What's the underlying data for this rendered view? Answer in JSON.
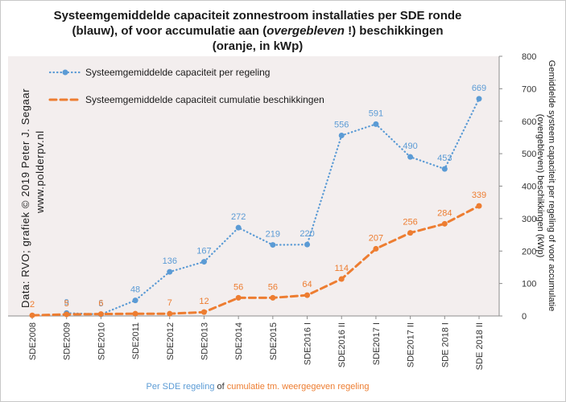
{
  "title": {
    "line1": "Systeemgemiddelde capaciteit zonnestroom installaties per SDE ronde",
    "line2_pre": "(blauw), of voor accumulatie aan (",
    "line2_em": "overgebleven",
    "line2_post": " !) beschikkingen",
    "line3": "(oranje, in kWp)"
  },
  "credit": {
    "line1": "Data: RVO; grafiek © 2019 Peter J. Segaar",
    "line2": "www.polderpv.nl"
  },
  "bottom_caption": {
    "part1": "Per SDE regeling",
    "part2": " of ",
    "part3": "cumulatie tm. weergegeven regeling"
  },
  "colors": {
    "blue": "#5b9bd5",
    "orange": "#ed7d31",
    "plot_bg": "#f3eeee"
  },
  "chart_data": {
    "type": "line",
    "categories": [
      "SDE2008",
      "SDE2009",
      "SDE2010",
      "SDE2011",
      "SDE2012",
      "SDE2013",
      "SDE2014",
      "SDE2015",
      "SDE2016 I",
      "SDE2016 II",
      "SDE2017 I",
      "SDE2017 II",
      "SDE 2018 I",
      "SDE 2018 II"
    ],
    "series": [
      {
        "name": "Systeemgemiddelde capaciteit per regeling",
        "style": "dotted-markers",
        "color": "#5b9bd5",
        "values": [
          null,
          9,
          5,
          48,
          136,
          167,
          272,
          219,
          220,
          556,
          591,
          490,
          453,
          669
        ],
        "labels": [
          "",
          "9",
          "5",
          "48",
          "136",
          "167",
          "272",
          "219",
          "220",
          "556",
          "591",
          "490",
          "453",
          "669"
        ]
      },
      {
        "name": "Systeemgemiddelde capaciteit cumulatie beschikkingen",
        "style": "dashed",
        "color": "#ed7d31",
        "values": [
          2,
          5,
          6,
          7,
          7,
          12,
          56,
          56,
          64,
          114,
          207,
          256,
          284,
          339
        ],
        "labels": [
          "2",
          "5",
          "6",
          "",
          "7",
          "12",
          "56",
          "56",
          "64",
          "114",
          "207",
          "256",
          "284",
          "339"
        ]
      }
    ],
    "y_axis": {
      "side": "right",
      "min": 0,
      "max": 800,
      "ticks": [
        0,
        100,
        200,
        300,
        400,
        500,
        600,
        700,
        800
      ],
      "label": "Gemiddelde systeem capaciteit per regeling of voor accumulatie (overgebleven) beschikkingen (kWp)",
      "label_line1": "Gemiddelde systeem capaciteit per regeling of voor accumulatie",
      "label_line2": "(overgebleven) beschikkingen (kWp)"
    },
    "legend_position": "top-left",
    "grid": false
  }
}
